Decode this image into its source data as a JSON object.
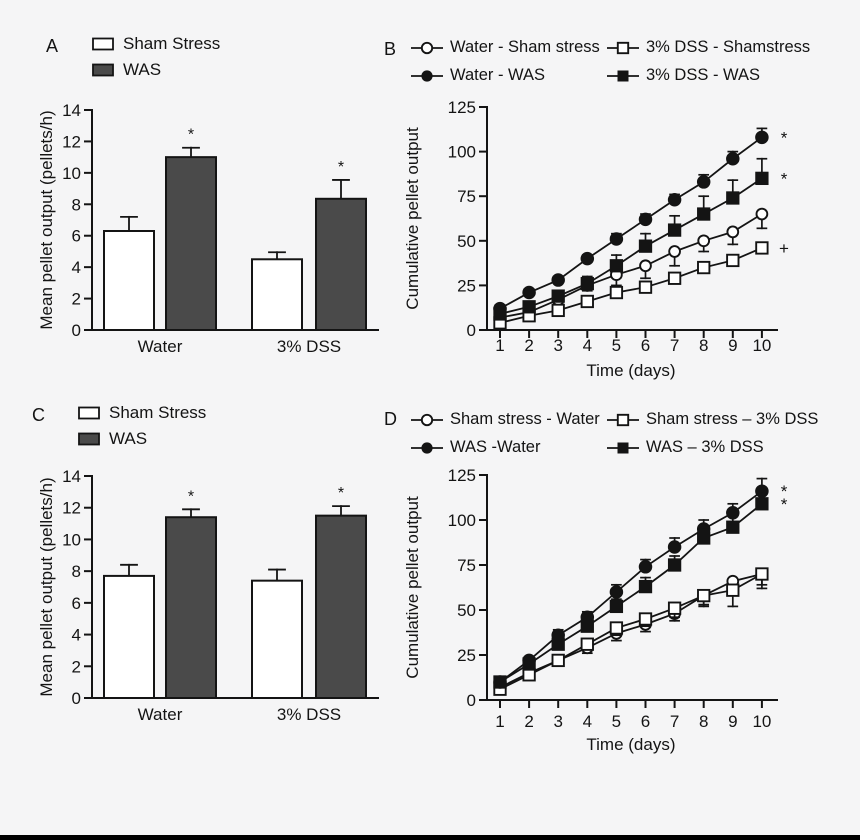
{
  "figure": {
    "background": "#f5f5f6",
    "bottom_bar_color": "#000000",
    "ink_color": "#141414",
    "bar_fill_was": "#4a4a4a",
    "bar_fill_sham": "#ffffff"
  },
  "chart_data": [
    {
      "panel": "A",
      "type": "bar",
      "title": "",
      "ylabel": "Mean pellet output (pellets/h)",
      "xlabel": "",
      "ylim": [
        0,
        14
      ],
      "yticks": [
        0,
        2,
        4,
        6,
        8,
        10,
        12,
        14
      ],
      "categories": [
        "Water",
        "3% DSS"
      ],
      "legend_position": "top-left",
      "series": [
        {
          "name": "Sham Stress",
          "swatch": "open-box",
          "fill": "#ffffff",
          "values": [
            6.3,
            4.5
          ],
          "errors": [
            0.9,
            0.45
          ],
          "sig": [
            "",
            ""
          ]
        },
        {
          "name": "WAS",
          "swatch": "filled-box",
          "fill": "#4a4a4a",
          "values": [
            11.0,
            8.35
          ],
          "errors": [
            0.6,
            1.2
          ],
          "sig": [
            "*",
            "*"
          ]
        }
      ]
    },
    {
      "panel": "B",
      "type": "line",
      "title": "",
      "ylabel": "Cumulative pellet output",
      "xlabel": "Time (days)",
      "ylim": [
        0,
        125
      ],
      "yticks": [
        0,
        25,
        50,
        75,
        100,
        125
      ],
      "x": [
        1,
        2,
        3,
        4,
        5,
        6,
        7,
        8,
        9,
        10
      ],
      "legend_position": "top",
      "series": [
        {
          "name": "Water - Sham stress",
          "marker": "open-circle",
          "err_dir": "down",
          "values": [
            7,
            10,
            17,
            25,
            31,
            36,
            44,
            50,
            55,
            65
          ],
          "errors": [
            1,
            1,
            2,
            3,
            6,
            7,
            8,
            6,
            7,
            8
          ],
          "end_annotation": ""
        },
        {
          "name": "3% DSS - Shamstress",
          "marker": "open-square",
          "err_dir": "down",
          "values": [
            4,
            8,
            11,
            16,
            21,
            24,
            29,
            35,
            39,
            46
          ],
          "errors": [
            1,
            1,
            1,
            2,
            2,
            2,
            2,
            3,
            3,
            3
          ],
          "end_annotation": "+"
        },
        {
          "name": "Water - WAS",
          "marker": "filled-circle",
          "err_dir": "up",
          "values": [
            12,
            21,
            28,
            40,
            51,
            62,
            73,
            83,
            96,
            108
          ],
          "errors": [
            2,
            2,
            2,
            2,
            3,
            3,
            3,
            4,
            4,
            5
          ],
          "end_annotation": "*"
        },
        {
          "name": "3% DSS - WAS",
          "marker": "filled-square",
          "err_dir": "up",
          "values": [
            9,
            13,
            19,
            26,
            36,
            47,
            56,
            65,
            74,
            85
          ],
          "errors": [
            2,
            3,
            3,
            4,
            6,
            7,
            8,
            10,
            10,
            11
          ],
          "end_annotation": "*"
        }
      ]
    },
    {
      "panel": "C",
      "type": "bar",
      "title": "",
      "ylabel": "Mean pellet output (pellets/h)",
      "xlabel": "",
      "ylim": [
        0,
        14
      ],
      "yticks": [
        0,
        2,
        4,
        6,
        8,
        10,
        12,
        14
      ],
      "categories": [
        "Water",
        "3% DSS"
      ],
      "legend_position": "top-left",
      "series": [
        {
          "name": "Sham Stress",
          "swatch": "open-box",
          "fill": "#ffffff",
          "values": [
            7.7,
            7.4
          ],
          "errors": [
            0.7,
            0.7
          ],
          "sig": [
            "",
            ""
          ]
        },
        {
          "name": "WAS",
          "swatch": "filled-box",
          "fill": "#4a4a4a",
          "values": [
            11.4,
            11.5
          ],
          "errors": [
            0.5,
            0.6
          ],
          "sig": [
            "*",
            "*"
          ]
        }
      ]
    },
    {
      "panel": "D",
      "type": "line",
      "title": "",
      "ylabel": "Cumulative pellet output",
      "xlabel": "Time (days)",
      "ylim": [
        0,
        125
      ],
      "yticks": [
        0,
        25,
        50,
        75,
        100,
        125
      ],
      "x": [
        1,
        2,
        3,
        4,
        5,
        6,
        7,
        8,
        9,
        10
      ],
      "legend_position": "top",
      "series": [
        {
          "name": "Sham stress - Water",
          "marker": "open-circle",
          "err_dir": "down",
          "values": [
            7,
            15,
            22,
            29,
            37,
            42,
            48,
            58,
            66,
            70
          ],
          "errors": [
            1,
            2,
            2,
            3,
            4,
            4,
            4,
            5,
            5,
            6
          ],
          "end_annotation": ""
        },
        {
          "name": "Sham stress – 3% DSS",
          "marker": "open-square",
          "err_dir": "down",
          "values": [
            6,
            14,
            22,
            31,
            40,
            45,
            51,
            58,
            61,
            70
          ],
          "errors": [
            1,
            2,
            2,
            3,
            4,
            4,
            5,
            6,
            9,
            8
          ],
          "end_annotation": ""
        },
        {
          "name": "WAS -Water",
          "marker": "filled-circle",
          "err_dir": "up",
          "values": [
            10,
            22,
            36,
            46,
            60,
            74,
            85,
            95,
            104,
            116
          ],
          "errors": [
            2,
            2,
            3,
            3,
            4,
            4,
            5,
            5,
            5,
            7
          ],
          "end_annotation": "*"
        },
        {
          "name": "WAS – 3% DSS",
          "marker": "filled-square",
          "err_dir": "up",
          "values": [
            10,
            20,
            31,
            41,
            52,
            63,
            75,
            90,
            96,
            109
          ],
          "errors": [
            2,
            2,
            3,
            3,
            4,
            5,
            5,
            5,
            6,
            6
          ],
          "end_annotation": "*"
        }
      ]
    }
  ]
}
